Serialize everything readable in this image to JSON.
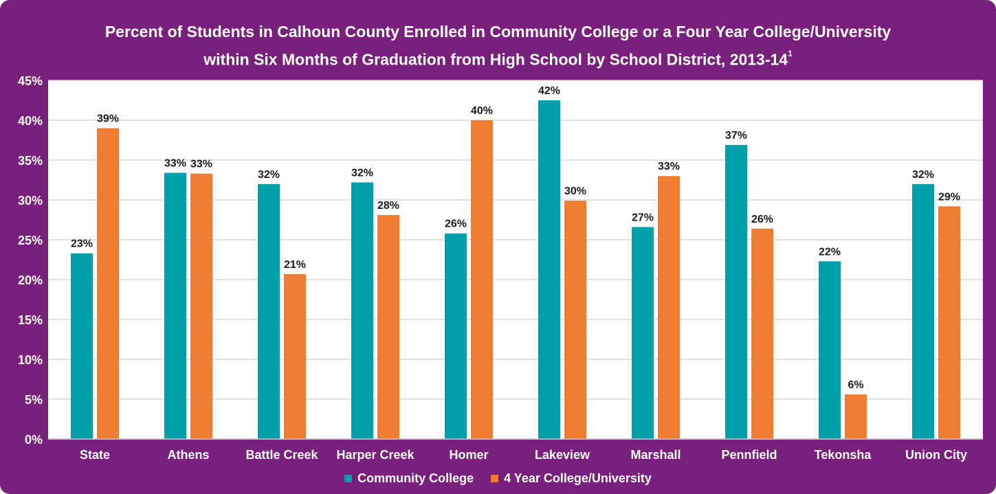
{
  "colors": {
    "background": "#791f7c",
    "plot_area": "#ffffff",
    "community_college": "#00a0aa",
    "four_year": "#ef7d32"
  },
  "title": {
    "line1": "Percent of Students in Calhoun County Enrolled in Community College or a Four Year College/University",
    "line2": "within Six Months of Graduation from High School by School District, 2013-14",
    "footnote": "1"
  },
  "legend": {
    "community_college": "Community College",
    "four_year": "4 Year College/University"
  },
  "chart_data": {
    "type": "bar",
    "title": "Percent of Students in Calhoun County Enrolled in Community College or a Four Year College/University within Six Months of Graduation from High School by School District, 2013-14",
    "xlabel": "",
    "ylabel": "",
    "ylim": [
      0,
      45
    ],
    "yticks": [
      "0%",
      "5%",
      "10%",
      "15%",
      "20%",
      "25%",
      "30%",
      "35%",
      "40%",
      "45%"
    ],
    "grid": true,
    "legend_position": "bottom",
    "categories": [
      "State",
      "Athens",
      "Battle Creek",
      "Harper Creek",
      "Homer",
      "Lakeview",
      "Marshall",
      "Pennfield",
      "Tekonsha",
      "Union City"
    ],
    "series": [
      {
        "name": "Community College",
        "values": [
          23.3,
          33.4,
          32.0,
          32.2,
          25.8,
          42.5,
          26.6,
          36.9,
          22.3,
          32.0
        ],
        "labels": [
          "23%",
          "33%",
          "32%",
          "32%",
          "26%",
          "42%",
          "27%",
          "37%",
          "22%",
          "32%"
        ]
      },
      {
        "name": "4 Year College/University",
        "values": [
          39.0,
          33.3,
          20.7,
          28.1,
          40.0,
          29.9,
          33.0,
          26.4,
          5.6,
          29.2
        ],
        "labels": [
          "39%",
          "33%",
          "21%",
          "28%",
          "40%",
          "30%",
          "33%",
          "26%",
          "6%",
          "29%"
        ]
      }
    ]
  }
}
